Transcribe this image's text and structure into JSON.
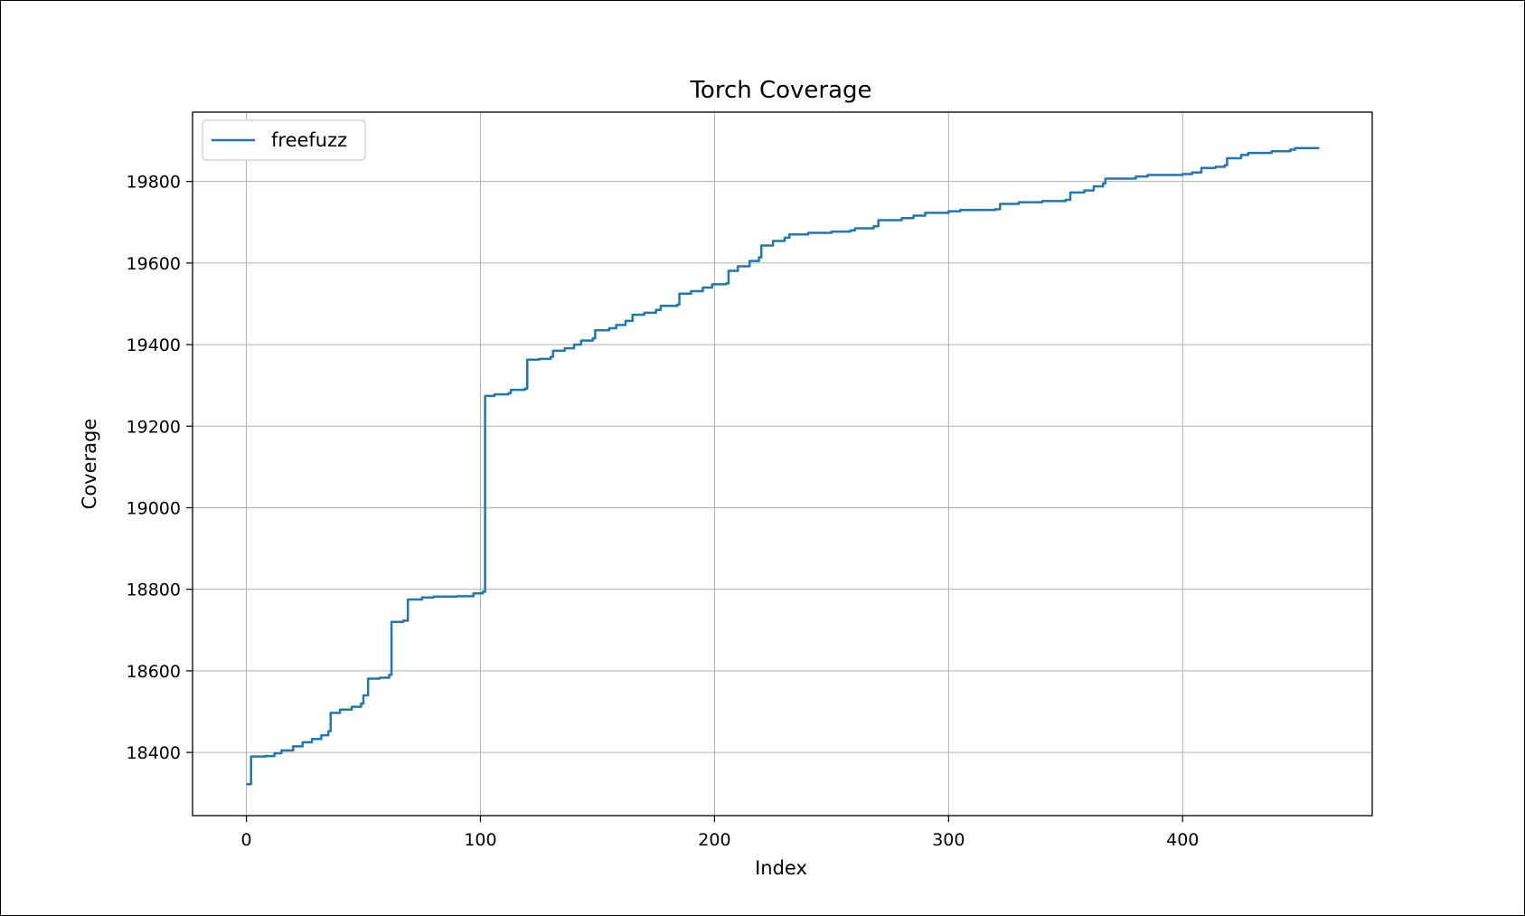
{
  "chart_data": {
    "type": "line",
    "title": "Torch Coverage",
    "xlabel": "Index",
    "ylabel": "Coverage",
    "xlim": [
      -23,
      481
    ],
    "ylim": [
      18245,
      19970
    ],
    "xticks": [
      0,
      100,
      200,
      300,
      400
    ],
    "yticks": [
      18400,
      18600,
      18800,
      19000,
      19200,
      19400,
      19600,
      19800
    ],
    "grid": true,
    "legend_position": "upper-left",
    "series": [
      {
        "name": "freefuzz",
        "color": "#1f77b4",
        "points": [
          [
            0,
            18322
          ],
          [
            2,
            18390
          ],
          [
            8,
            18391
          ],
          [
            12,
            18398
          ],
          [
            15,
            18405
          ],
          [
            20,
            18415
          ],
          [
            24,
            18425
          ],
          [
            28,
            18433
          ],
          [
            32,
            18442
          ],
          [
            35,
            18452
          ],
          [
            36,
            18497
          ],
          [
            40,
            18505
          ],
          [
            45,
            18512
          ],
          [
            49,
            18520
          ],
          [
            50,
            18540
          ],
          [
            52,
            18581
          ],
          [
            57,
            18583
          ],
          [
            61,
            18590
          ],
          [
            62,
            18720
          ],
          [
            67,
            18723
          ],
          [
            69,
            18775
          ],
          [
            75,
            18780
          ],
          [
            80,
            18782
          ],
          [
            90,
            18783
          ],
          [
            96,
            18783
          ],
          [
            97,
            18790
          ],
          [
            101,
            18794
          ],
          [
            102,
            19274
          ],
          [
            106,
            19278
          ],
          [
            112,
            19281
          ],
          [
            113,
            19289
          ],
          [
            119,
            19292
          ],
          [
            120,
            19363
          ],
          [
            125,
            19365
          ],
          [
            130,
            19370
          ],
          [
            131,
            19385
          ],
          [
            136,
            19391
          ],
          [
            140,
            19400
          ],
          [
            143,
            19410
          ],
          [
            148,
            19415
          ],
          [
            149,
            19435
          ],
          [
            155,
            19440
          ],
          [
            158,
            19448
          ],
          [
            162,
            19458
          ],
          [
            165,
            19473
          ],
          [
            170,
            19478
          ],
          [
            175,
            19485
          ],
          [
            177,
            19495
          ],
          [
            184,
            19498
          ],
          [
            185,
            19525
          ],
          [
            190,
            19531
          ],
          [
            195,
            19540
          ],
          [
            199,
            19548
          ],
          [
            205,
            19550
          ],
          [
            206,
            19581
          ],
          [
            210,
            19592
          ],
          [
            215,
            19605
          ],
          [
            219,
            19614
          ],
          [
            220,
            19643
          ],
          [
            225,
            19654
          ],
          [
            230,
            19662
          ],
          [
            232,
            19670
          ],
          [
            240,
            19674
          ],
          [
            250,
            19677
          ],
          [
            258,
            19680
          ],
          [
            260,
            19685
          ],
          [
            268,
            19690
          ],
          [
            270,
            19705
          ],
          [
            280,
            19710
          ],
          [
            285,
            19716
          ],
          [
            290,
            19723
          ],
          [
            300,
            19727
          ],
          [
            305,
            19730
          ],
          [
            320,
            19732
          ],
          [
            322,
            19745
          ],
          [
            330,
            19749
          ],
          [
            340,
            19752
          ],
          [
            350,
            19755
          ],
          [
            352,
            19773
          ],
          [
            358,
            19778
          ],
          [
            362,
            19788
          ],
          [
            366,
            19795
          ],
          [
            367,
            19807
          ],
          [
            380,
            19812
          ],
          [
            385,
            19816
          ],
          [
            400,
            19818
          ],
          [
            404,
            19822
          ],
          [
            408,
            19833
          ],
          [
            414,
            19836
          ],
          [
            418,
            19840
          ],
          [
            419,
            19857
          ],
          [
            425,
            19865
          ],
          [
            428,
            19870
          ],
          [
            438,
            19874
          ],
          [
            446,
            19878
          ],
          [
            448,
            19882
          ],
          [
            458,
            19884
          ]
        ]
      }
    ]
  }
}
